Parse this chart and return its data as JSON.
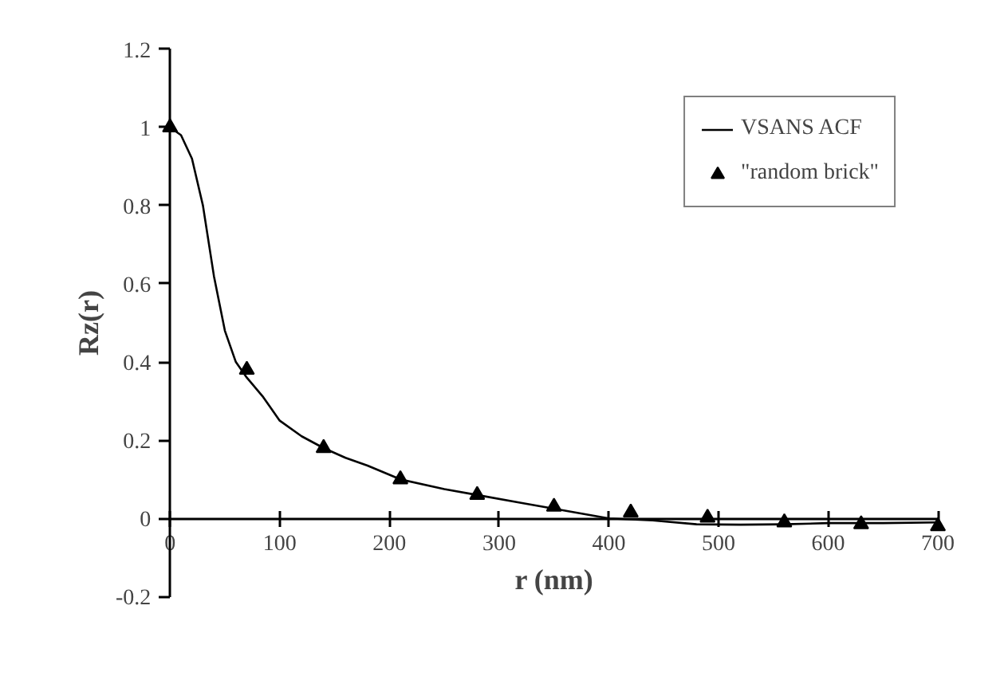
{
  "chart_data": {
    "type": "line",
    "xlabel": "r (nm)",
    "ylabel": "Rz(r)",
    "xlim": [
      0,
      700
    ],
    "ylim": [
      -0.2,
      1.2
    ],
    "xticks": [
      0,
      100,
      200,
      300,
      400,
      500,
      600,
      700
    ],
    "yticks": [
      -0.2,
      0,
      0.2,
      0.4,
      0.6,
      0.8,
      1,
      1.2
    ],
    "grid": false,
    "legend": "top right",
    "series": [
      {
        "name": "VSANS ACF",
        "color": "#000000",
        "line_style": "solid",
        "marker": "none",
        "x": [
          0,
          10,
          20,
          30,
          40,
          50,
          60,
          70,
          85,
          100,
          120,
          140,
          160,
          180,
          210,
          250,
          280,
          320,
          360,
          400,
          440,
          480,
          520,
          560,
          600,
          650,
          700
        ],
        "values": [
          1,
          0.98,
          0.92,
          0.8,
          0.62,
          0.48,
          0.4,
          0.36,
          0.31,
          0.25,
          0.21,
          0.18,
          0.155,
          0.135,
          0.1,
          0.075,
          0.06,
          0.04,
          0.02,
          0.0,
          -0.005,
          -0.015,
          -0.016,
          -0.015,
          -0.012,
          -0.012,
          -0.01
        ]
      },
      {
        "name": "\"random brick\"",
        "type": "scatter",
        "color": "#000000",
        "marker": "triangle",
        "x": [
          0,
          70,
          140,
          210,
          280,
          350,
          420,
          490,
          560,
          630,
          700
        ],
        "values": [
          1.0,
          0.38,
          0.18,
          0.1,
          0.06,
          0.03,
          0.015,
          0.002,
          -0.01,
          -0.015,
          -0.02
        ]
      }
    ]
  }
}
